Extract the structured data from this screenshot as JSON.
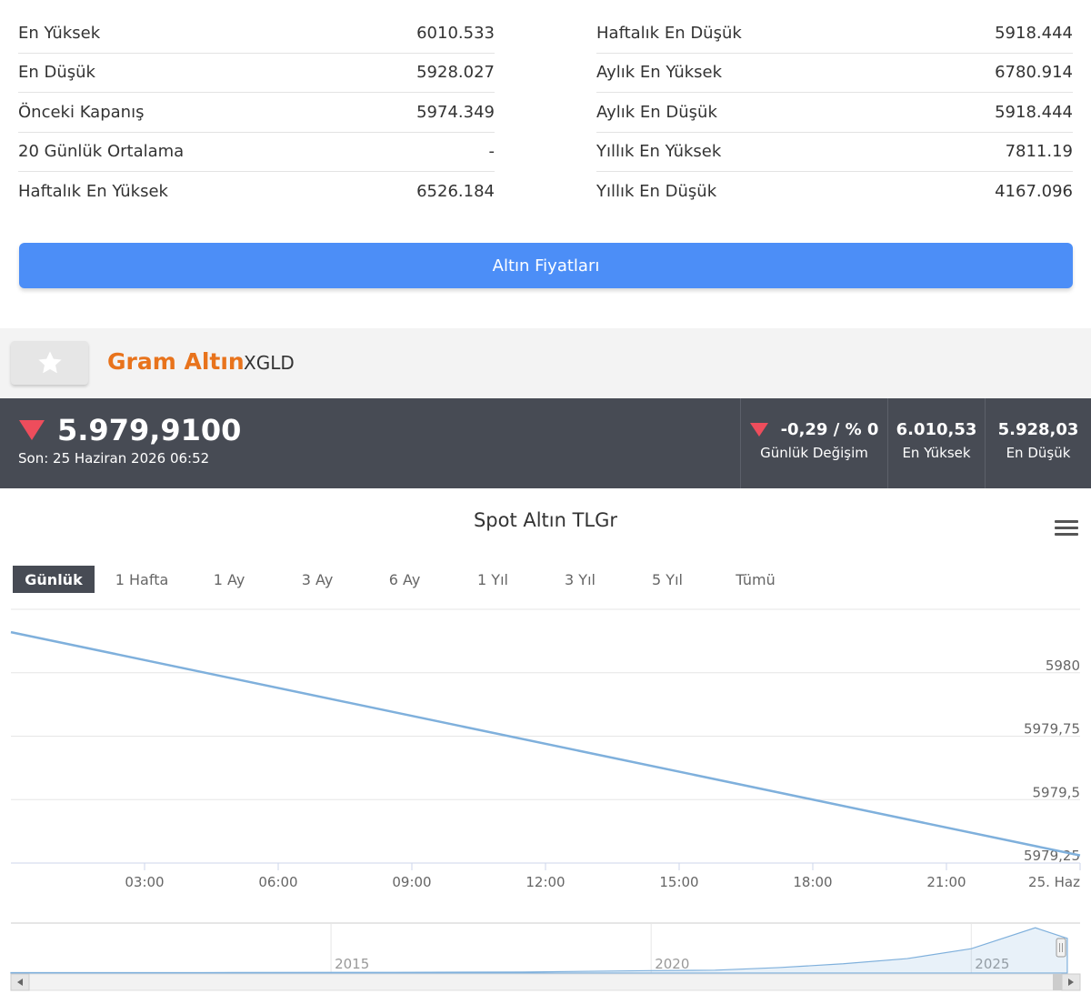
{
  "stats_left": [
    {
      "label": "En Yüksek",
      "value": "6010.533"
    },
    {
      "label": "En Düşük",
      "value": "5928.027"
    },
    {
      "label": "Önceki Kapanış",
      "value": "5974.349"
    },
    {
      "label": "20 Günlük Ortalama",
      "value": "-"
    },
    {
      "label": "Haftalık En Yüksek",
      "value": "6526.184"
    }
  ],
  "stats_right": [
    {
      "label": "Haftalık En Düşük",
      "value": "5918.444"
    },
    {
      "label": "Aylık En Yüksek",
      "value": "6780.914"
    },
    {
      "label": "Aylık En Düşük",
      "value": "5918.444"
    },
    {
      "label": "Yıllık En Yüksek",
      "value": "7811.19"
    },
    {
      "label": "Yıllık En Düşük",
      "value": "4167.096"
    }
  ],
  "gold_prices_button": "Altın Fiyatları",
  "instrument": {
    "name": "Gram Altın",
    "code": "XGLD"
  },
  "price": {
    "current": "5.979,9100",
    "last_update": "Son: 25 Haziran 2026 06:52",
    "daily_change": "-0,29 / % 0",
    "daily_change_label": "Günlük Değişim",
    "high": "6.010,53",
    "high_label": "En Yüksek",
    "low": "5.928,03",
    "low_label": "En Düşük"
  },
  "colors": {
    "accent": "#e8731c",
    "button": "#4c8ef7",
    "dark_bar": "#474b54",
    "down": "#ee4d5c",
    "line": "#7fb0dc"
  },
  "chart_title": "Spot Altın TLGr",
  "ranges": [
    "Günlük",
    "1 Hafta",
    "1 Ay",
    "3 Ay",
    "6 Ay",
    "1 Yıl",
    "3 Yıl",
    "5 Yıl",
    "Tümü"
  ],
  "active_range": "Günlük",
  "chart_data": {
    "type": "line",
    "title": "Spot Altın TLGr",
    "x_ticks": [
      "03:00",
      "06:00",
      "09:00",
      "12:00",
      "15:00",
      "18:00",
      "21:00",
      "25. Haz"
    ],
    "y_ticks": [
      5979.25,
      5979.5,
      5979.75,
      5980
    ],
    "y_tick_labels": [
      "5979,25",
      "5979,5",
      "5979,75",
      "5980"
    ],
    "ylim": [
      5979.25,
      5980.25
    ],
    "series": [
      {
        "x": [
          "00:00",
          "24:00"
        ],
        "values": [
          5980.16,
          5979.28
        ]
      }
    ],
    "grid": true,
    "navigator": {
      "labels": [
        "2015",
        "2020",
        "2025"
      ],
      "series": [
        {
          "x": "2010",
          "value": 80
        },
        {
          "x": "2013",
          "value": 90
        },
        {
          "x": "2016",
          "value": 120
        },
        {
          "x": "2018",
          "value": 180
        },
        {
          "x": "2020",
          "value": 420
        },
        {
          "x": "2021",
          "value": 500
        },
        {
          "x": "2022",
          "value": 950
        },
        {
          "x": "2023",
          "value": 1600
        },
        {
          "x": "2024",
          "value": 2500
        },
        {
          "x": "2025",
          "value": 4200
        },
        {
          "x": "2026",
          "value": 7800
        },
        {
          "x": "2026.5",
          "value": 5980
        }
      ]
    }
  }
}
